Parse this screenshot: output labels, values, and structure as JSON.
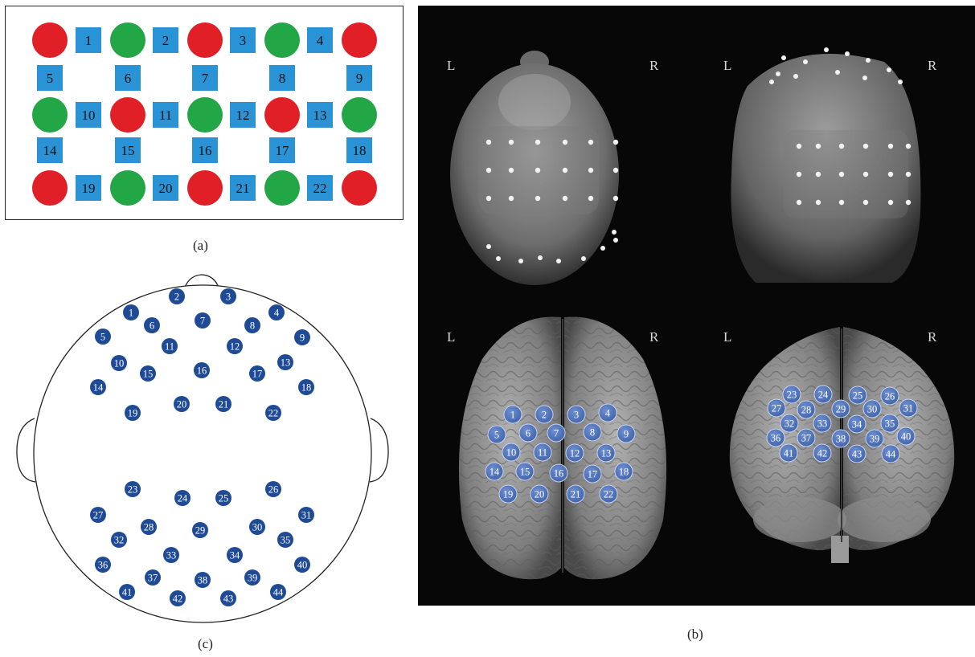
{
  "figure": {
    "panel_labels": {
      "a": "(a)",
      "b": "(b)",
      "c": "(c)"
    },
    "colors": {
      "source_red": "#e01f26",
      "detector_green": "#23a645",
      "channel_blue": "#2a93d5",
      "electrode_navy": "#1f4a96",
      "brain_marker": "#4a6fb4",
      "panel_b_background": "#070707"
    }
  },
  "panel_a": {
    "rows": [
      [
        "red",
        "green",
        "red",
        "green",
        "red"
      ],
      [
        "green",
        "red",
        "green",
        "red",
        "green"
      ],
      [
        "red",
        "green",
        "red",
        "green",
        "red"
      ]
    ],
    "horizontal_channels": [
      [
        "1",
        "2",
        "3",
        "4"
      ],
      [
        "10",
        "11",
        "12",
        "13"
      ],
      [
        "19",
        "20",
        "21",
        "22"
      ]
    ],
    "vertical_channels": [
      [
        "5",
        "6",
        "7",
        "8",
        "9"
      ],
      [
        "14",
        "15",
        "16",
        "17",
        "18"
      ]
    ]
  },
  "panel_b": {
    "views": [
      {
        "name": "head-top",
        "left": "L",
        "right": "R"
      },
      {
        "name": "head-back",
        "left": "L",
        "right": "R"
      },
      {
        "name": "brain-top",
        "left": "L",
        "right": "R"
      },
      {
        "name": "brain-back",
        "left": "L",
        "right": "R"
      }
    ],
    "brain_top_channels": [
      "1",
      "2",
      "3",
      "4",
      "5",
      "6",
      "7",
      "8",
      "9",
      "10",
      "11",
      "12",
      "13",
      "14",
      "15",
      "16",
      "17",
      "18",
      "19",
      "20",
      "21",
      "22"
    ],
    "brain_back_channels": [
      "23",
      "24",
      "25",
      "26",
      "27",
      "28",
      "29",
      "30",
      "31",
      "32",
      "33",
      "34",
      "35",
      "36",
      "37",
      "38",
      "39",
      "40",
      "41",
      "42",
      "43",
      "44"
    ]
  },
  "panel_c": {
    "channels": [
      "1",
      "2",
      "3",
      "4",
      "5",
      "6",
      "7",
      "8",
      "9",
      "10",
      "11",
      "12",
      "13",
      "14",
      "15",
      "16",
      "17",
      "18",
      "19",
      "20",
      "21",
      "22",
      "23",
      "24",
      "25",
      "26",
      "27",
      "28",
      "29",
      "30",
      "31",
      "32",
      "33",
      "34",
      "35",
      "36",
      "37",
      "38",
      "39",
      "40",
      "41",
      "42",
      "43",
      "44"
    ]
  }
}
